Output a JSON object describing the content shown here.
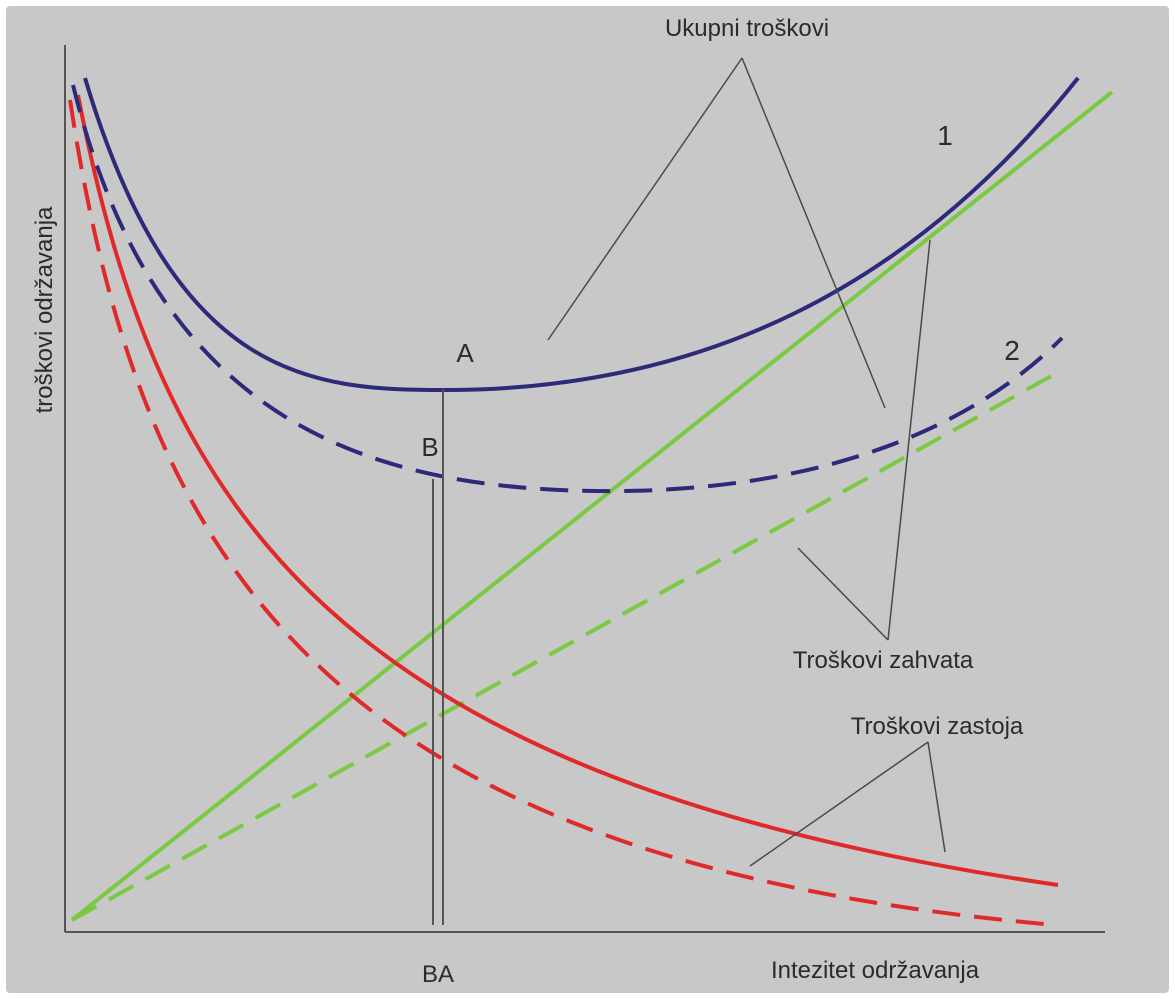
{
  "labels": {
    "y_axis": "troškovi održavanja",
    "x_axis": "Intezitet održavanja",
    "x_ticks": "BA",
    "total_costs": "Ukupni troškovi",
    "intervention_costs": "Troškovi zahvata",
    "downtime_costs": "Troškovi zastoja",
    "point_a": "A",
    "point_b": "B",
    "curve_1": "1",
    "curve_2": "2"
  },
  "colors": {
    "background": "#c8c8c8",
    "total_costs": "#2e2a7a",
    "intervention_costs": "#7ac943",
    "downtime_costs": "#e02a2a",
    "axes": "#555555",
    "leaders": "#4a4a4a"
  },
  "line_styles": {
    "curve_1": "solid",
    "curve_2": "dashed"
  }
}
